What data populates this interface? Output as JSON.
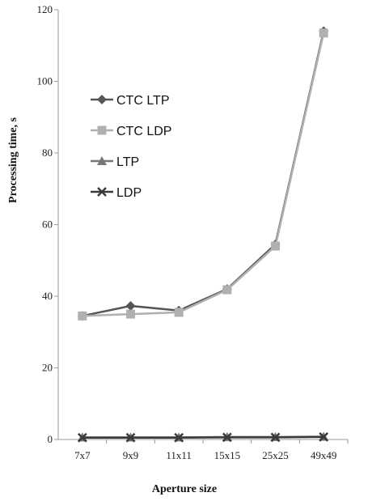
{
  "chart_data": {
    "type": "line",
    "categories": [
      "7x7",
      "9x9",
      "11x11",
      "15x15",
      "25x25",
      "49x49"
    ],
    "xlabel": "Aperture size",
    "ylabel": "Processing time, s",
    "ylim": [
      0,
      120
    ],
    "yticks": [
      0,
      20,
      40,
      60,
      80,
      100,
      120
    ],
    "grid": false,
    "legend_position": "upper-left",
    "series": [
      {
        "name": "CTC LTP",
        "marker": "diamond",
        "color": "#555555",
        "values": [
          34.5,
          37.3,
          36.0,
          42.0,
          54.5,
          114.0
        ]
      },
      {
        "name": "CTC LDP",
        "marker": "square",
        "color": "#b0b0b0",
        "values": [
          34.5,
          35.0,
          35.5,
          41.8,
          54.0,
          113.5
        ]
      },
      {
        "name": "LTP",
        "marker": "triangle",
        "color": "#777777",
        "values": [
          0.6,
          0.6,
          0.6,
          0.7,
          0.7,
          0.8
        ]
      },
      {
        "name": "LDP",
        "marker": "x",
        "color": "#3a3a3a",
        "values": [
          0.5,
          0.5,
          0.5,
          0.6,
          0.6,
          0.7
        ]
      }
    ]
  }
}
